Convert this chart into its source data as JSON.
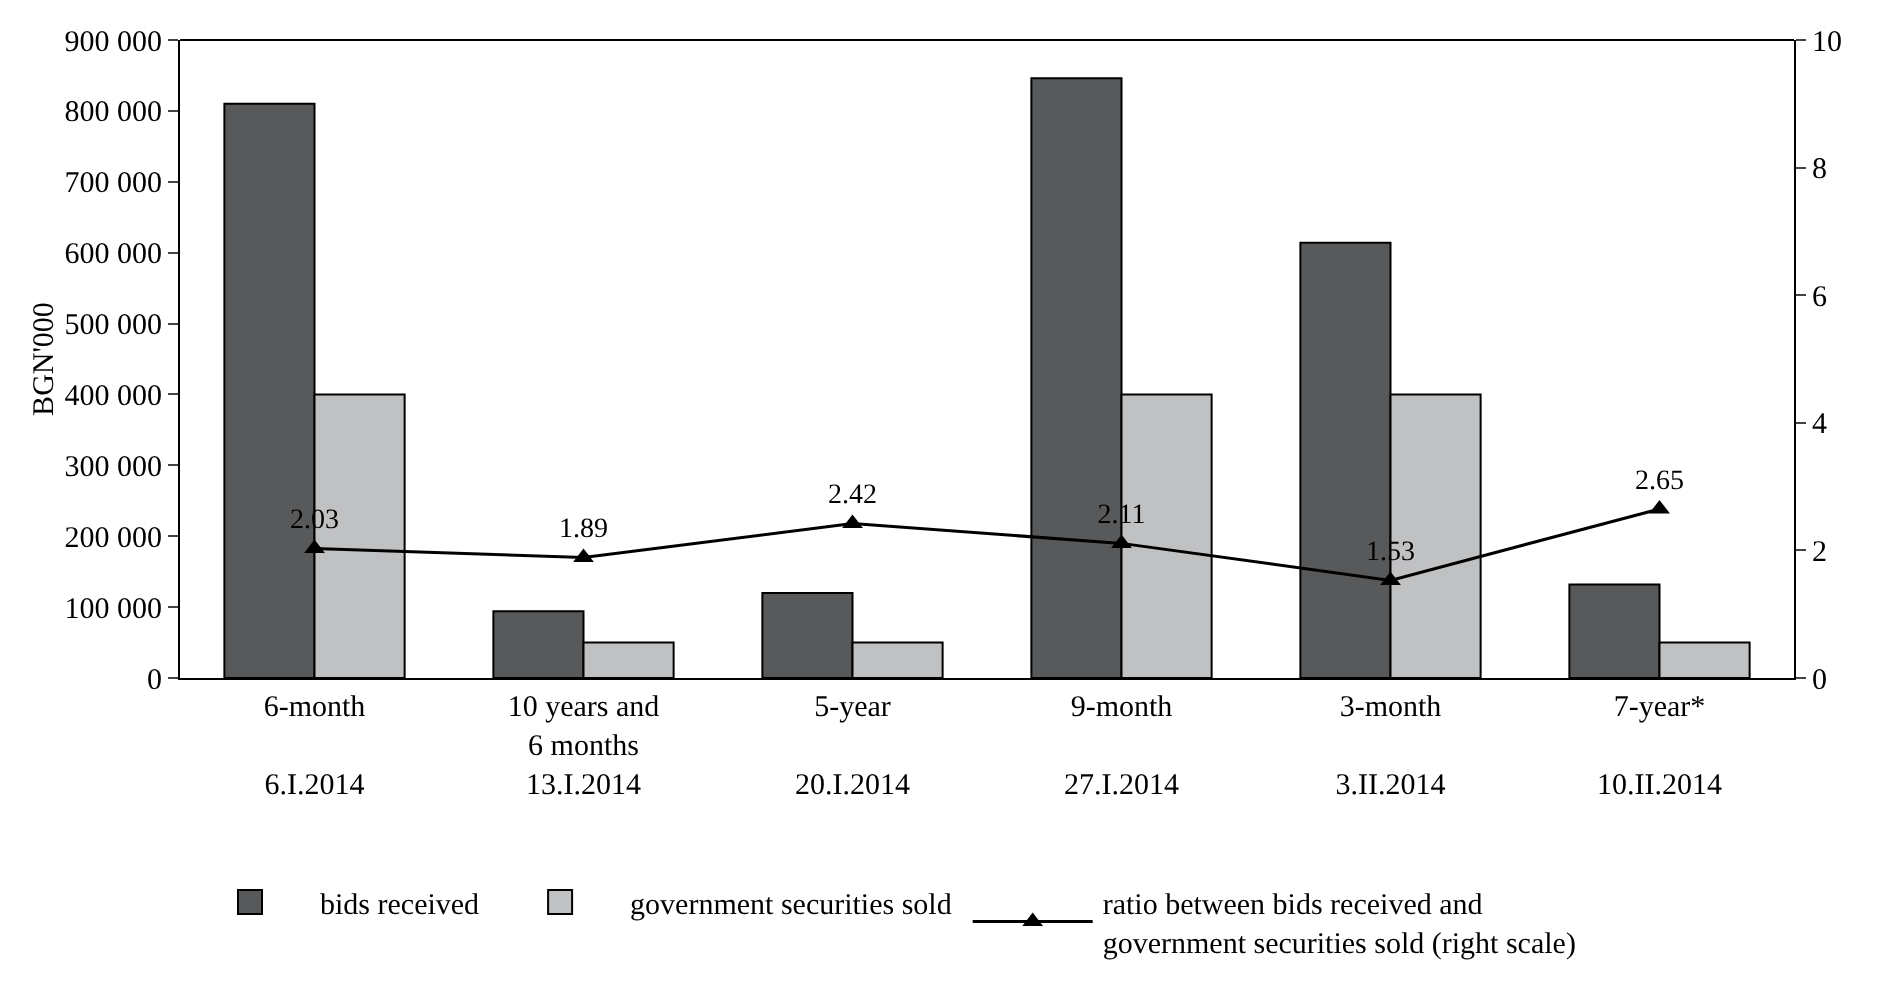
{
  "chart_data": {
    "type": "bar",
    "ylabel": "BGN'000",
    "categories": [
      "6-month\n\n6.I.2014",
      "10 years and\n6 months\n13.I.2014",
      "5-year\n\n20.I.2014",
      "9-month\n\n27.I.2014",
      "3-month\n\n3.II.2014",
      "7-year*\n\n10.II.2014"
    ],
    "series": [
      {
        "name": "bids received",
        "color": "#58595b",
        "values": [
          810000,
          94000,
          120000,
          846000,
          614000,
          132000
        ]
      },
      {
        "name": "government securities sold",
        "color": "#c0c1c3",
        "values": [
          400000,
          50000,
          50000,
          400000,
          400000,
          50000
        ]
      },
      {
        "name": "ratio between bids received and\ngovernment securities sold (right scale)",
        "type": "line",
        "axis": "y2",
        "color": "#000000",
        "marker": "triangle",
        "data_labels": true,
        "values": [
          2.03,
          1.89,
          2.42,
          2.11,
          1.53,
          2.65
        ]
      }
    ],
    "ylim": [
      0,
      900000
    ],
    "yticks": [
      {
        "value": 0,
        "label": "0"
      },
      {
        "value": 100000,
        "label": "100 000"
      },
      {
        "value": 200000,
        "label": "200 000"
      },
      {
        "value": 300000,
        "label": "300 000"
      },
      {
        "value": 400000,
        "label": "400 000"
      },
      {
        "value": 500000,
        "label": "500 000"
      },
      {
        "value": 600000,
        "label": "600 000"
      },
      {
        "value": 700000,
        "label": "700 000"
      },
      {
        "value": 800000,
        "label": "800 000"
      },
      {
        "value": 900000,
        "label": "900 000"
      }
    ],
    "y2lim": [
      0,
      10
    ],
    "y2ticks": [
      0,
      2,
      4,
      6,
      8,
      10
    ],
    "grid": false,
    "legend": "bottom"
  }
}
